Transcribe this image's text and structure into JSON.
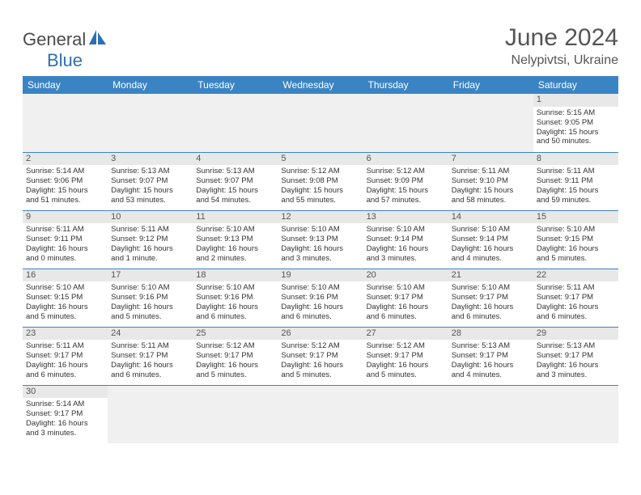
{
  "logo": {
    "general": "General",
    "blue": "Blue"
  },
  "header": {
    "title": "June 2024",
    "location": "Nelypivtsi, Ukraine"
  },
  "dayHeaders": [
    "Sunday",
    "Monday",
    "Tuesday",
    "Wednesday",
    "Thursday",
    "Friday",
    "Saturday"
  ],
  "colors": {
    "headerBg": "#3b84c4",
    "dayBg": "#e8e8e8",
    "rowBorder": "#3b84c4"
  },
  "weeks": [
    [
      null,
      null,
      null,
      null,
      null,
      null,
      {
        "n": "1",
        "sr": "Sunrise: 5:15 AM",
        "ss": "Sunset: 9:05 PM",
        "d1": "Daylight: 15 hours",
        "d2": "and 50 minutes."
      }
    ],
    [
      {
        "n": "2",
        "sr": "Sunrise: 5:14 AM",
        "ss": "Sunset: 9:06 PM",
        "d1": "Daylight: 15 hours",
        "d2": "and 51 minutes."
      },
      {
        "n": "3",
        "sr": "Sunrise: 5:13 AM",
        "ss": "Sunset: 9:07 PM",
        "d1": "Daylight: 15 hours",
        "d2": "and 53 minutes."
      },
      {
        "n": "4",
        "sr": "Sunrise: 5:13 AM",
        "ss": "Sunset: 9:07 PM",
        "d1": "Daylight: 15 hours",
        "d2": "and 54 minutes."
      },
      {
        "n": "5",
        "sr": "Sunrise: 5:12 AM",
        "ss": "Sunset: 9:08 PM",
        "d1": "Daylight: 15 hours",
        "d2": "and 55 minutes."
      },
      {
        "n": "6",
        "sr": "Sunrise: 5:12 AM",
        "ss": "Sunset: 9:09 PM",
        "d1": "Daylight: 15 hours",
        "d2": "and 57 minutes."
      },
      {
        "n": "7",
        "sr": "Sunrise: 5:11 AM",
        "ss": "Sunset: 9:10 PM",
        "d1": "Daylight: 15 hours",
        "d2": "and 58 minutes."
      },
      {
        "n": "8",
        "sr": "Sunrise: 5:11 AM",
        "ss": "Sunset: 9:11 PM",
        "d1": "Daylight: 15 hours",
        "d2": "and 59 minutes."
      }
    ],
    [
      {
        "n": "9",
        "sr": "Sunrise: 5:11 AM",
        "ss": "Sunset: 9:11 PM",
        "d1": "Daylight: 16 hours",
        "d2": "and 0 minutes."
      },
      {
        "n": "10",
        "sr": "Sunrise: 5:11 AM",
        "ss": "Sunset: 9:12 PM",
        "d1": "Daylight: 16 hours",
        "d2": "and 1 minute."
      },
      {
        "n": "11",
        "sr": "Sunrise: 5:10 AM",
        "ss": "Sunset: 9:13 PM",
        "d1": "Daylight: 16 hours",
        "d2": "and 2 minutes."
      },
      {
        "n": "12",
        "sr": "Sunrise: 5:10 AM",
        "ss": "Sunset: 9:13 PM",
        "d1": "Daylight: 16 hours",
        "d2": "and 3 minutes."
      },
      {
        "n": "13",
        "sr": "Sunrise: 5:10 AM",
        "ss": "Sunset: 9:14 PM",
        "d1": "Daylight: 16 hours",
        "d2": "and 3 minutes."
      },
      {
        "n": "14",
        "sr": "Sunrise: 5:10 AM",
        "ss": "Sunset: 9:14 PM",
        "d1": "Daylight: 16 hours",
        "d2": "and 4 minutes."
      },
      {
        "n": "15",
        "sr": "Sunrise: 5:10 AM",
        "ss": "Sunset: 9:15 PM",
        "d1": "Daylight: 16 hours",
        "d2": "and 5 minutes."
      }
    ],
    [
      {
        "n": "16",
        "sr": "Sunrise: 5:10 AM",
        "ss": "Sunset: 9:15 PM",
        "d1": "Daylight: 16 hours",
        "d2": "and 5 minutes."
      },
      {
        "n": "17",
        "sr": "Sunrise: 5:10 AM",
        "ss": "Sunset: 9:16 PM",
        "d1": "Daylight: 16 hours",
        "d2": "and 5 minutes."
      },
      {
        "n": "18",
        "sr": "Sunrise: 5:10 AM",
        "ss": "Sunset: 9:16 PM",
        "d1": "Daylight: 16 hours",
        "d2": "and 6 minutes."
      },
      {
        "n": "19",
        "sr": "Sunrise: 5:10 AM",
        "ss": "Sunset: 9:16 PM",
        "d1": "Daylight: 16 hours",
        "d2": "and 6 minutes."
      },
      {
        "n": "20",
        "sr": "Sunrise: 5:10 AM",
        "ss": "Sunset: 9:17 PM",
        "d1": "Daylight: 16 hours",
        "d2": "and 6 minutes."
      },
      {
        "n": "21",
        "sr": "Sunrise: 5:10 AM",
        "ss": "Sunset: 9:17 PM",
        "d1": "Daylight: 16 hours",
        "d2": "and 6 minutes."
      },
      {
        "n": "22",
        "sr": "Sunrise: 5:11 AM",
        "ss": "Sunset: 9:17 PM",
        "d1": "Daylight: 16 hours",
        "d2": "and 6 minutes."
      }
    ],
    [
      {
        "n": "23",
        "sr": "Sunrise: 5:11 AM",
        "ss": "Sunset: 9:17 PM",
        "d1": "Daylight: 16 hours",
        "d2": "and 6 minutes."
      },
      {
        "n": "24",
        "sr": "Sunrise: 5:11 AM",
        "ss": "Sunset: 9:17 PM",
        "d1": "Daylight: 16 hours",
        "d2": "and 6 minutes."
      },
      {
        "n": "25",
        "sr": "Sunrise: 5:12 AM",
        "ss": "Sunset: 9:17 PM",
        "d1": "Daylight: 16 hours",
        "d2": "and 5 minutes."
      },
      {
        "n": "26",
        "sr": "Sunrise: 5:12 AM",
        "ss": "Sunset: 9:17 PM",
        "d1": "Daylight: 16 hours",
        "d2": "and 5 minutes."
      },
      {
        "n": "27",
        "sr": "Sunrise: 5:12 AM",
        "ss": "Sunset: 9:17 PM",
        "d1": "Daylight: 16 hours",
        "d2": "and 5 minutes."
      },
      {
        "n": "28",
        "sr": "Sunrise: 5:13 AM",
        "ss": "Sunset: 9:17 PM",
        "d1": "Daylight: 16 hours",
        "d2": "and 4 minutes."
      },
      {
        "n": "29",
        "sr": "Sunrise: 5:13 AM",
        "ss": "Sunset: 9:17 PM",
        "d1": "Daylight: 16 hours",
        "d2": "and 3 minutes."
      }
    ],
    [
      {
        "n": "30",
        "sr": "Sunrise: 5:14 AM",
        "ss": "Sunset: 9:17 PM",
        "d1": "Daylight: 16 hours",
        "d2": "and 3 minutes."
      },
      null,
      null,
      null,
      null,
      null,
      null
    ]
  ]
}
